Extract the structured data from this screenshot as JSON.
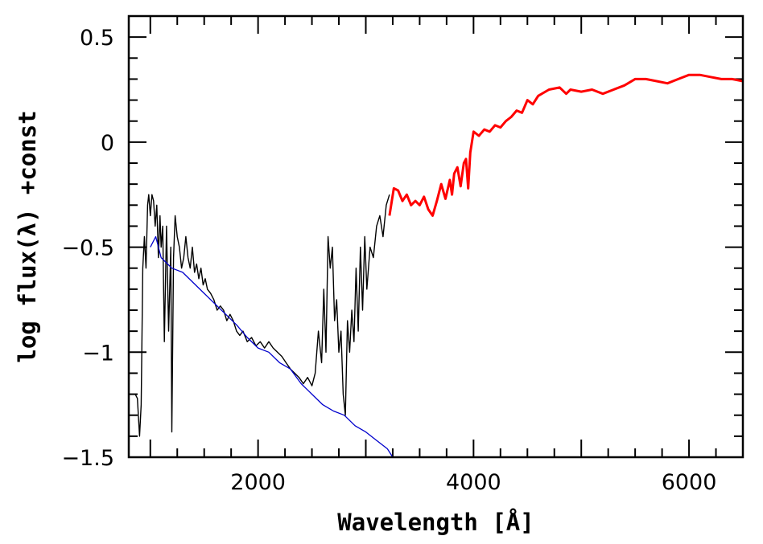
{
  "chart_data": {
    "type": "line",
    "title": "",
    "xlabel": "Wavelength [Å]",
    "ylabel": "log flux(λ) +const",
    "xlim": [
      800,
      6500
    ],
    "ylim": [
      -1.5,
      0.6
    ],
    "x_ticks": [
      2000,
      4000,
      6000
    ],
    "x_tick_labels": [
      "2000",
      "4000",
      "6000"
    ],
    "y_ticks": [
      0.5,
      0,
      -0.5,
      -1,
      -1.5
    ],
    "y_tick_labels": [
      "0.5",
      "0",
      "−0.5",
      "−1",
      "−1.5"
    ],
    "grid": false,
    "legend": "none",
    "series": [
      {
        "color": "#000000",
        "x": [
          860,
          880,
          900,
          915,
          930,
          945,
          960,
          975,
          985,
          1000,
          1015,
          1030,
          1045,
          1060,
          1075,
          1090,
          1100,
          1115,
          1130,
          1150,
          1170,
          1190,
          1200,
          1215,
          1230,
          1250,
          1270,
          1290,
          1310,
          1330,
          1350,
          1370,
          1390,
          1410,
          1430,
          1450,
          1470,
          1490,
          1510,
          1530,
          1560,
          1590,
          1620,
          1650,
          1680,
          1710,
          1740,
          1770,
          1800,
          1830,
          1860,
          1900,
          1940,
          1980,
          2020,
          2060,
          2100,
          2140,
          2180,
          2220,
          2260,
          2300,
          2340,
          2380,
          2420,
          2460,
          2500,
          2530,
          2560,
          2590,
          2610,
          2630,
          2650,
          2670,
          2690,
          2710,
          2730,
          2750,
          2770,
          2790,
          2810,
          2830,
          2850,
          2870,
          2890,
          2910,
          2930,
          2950,
          2970,
          2990,
          3010,
          3040,
          3070,
          3100,
          3130,
          3160,
          3190,
          3220
        ],
        "y": [
          -1.2,
          -1.22,
          -1.4,
          -1.25,
          -0.6,
          -0.45,
          -0.6,
          -0.3,
          -0.25,
          -0.35,
          -0.25,
          -0.28,
          -0.4,
          -0.3,
          -0.55,
          -0.35,
          -0.5,
          -0.4,
          -0.95,
          -0.4,
          -0.9,
          -0.5,
          -1.38,
          -0.55,
          -0.35,
          -0.45,
          -0.5,
          -0.6,
          -0.55,
          -0.45,
          -0.55,
          -0.6,
          -0.5,
          -0.62,
          -0.58,
          -0.65,
          -0.6,
          -0.68,
          -0.65,
          -0.7,
          -0.72,
          -0.75,
          -0.8,
          -0.78,
          -0.8,
          -0.85,
          -0.82,
          -0.85,
          -0.9,
          -0.92,
          -0.9,
          -0.95,
          -0.93,
          -0.97,
          -0.95,
          -0.98,
          -0.95,
          -0.98,
          -1.0,
          -1.02,
          -1.05,
          -1.08,
          -1.1,
          -1.12,
          -1.15,
          -1.12,
          -1.16,
          -1.1,
          -0.9,
          -1.05,
          -0.7,
          -1.0,
          -0.45,
          -0.6,
          -0.5,
          -0.85,
          -0.75,
          -1.0,
          -0.9,
          -1.2,
          -1.3,
          -0.85,
          -1.0,
          -0.8,
          -0.95,
          -0.6,
          -0.9,
          -0.5,
          -0.8,
          -0.45,
          -0.7,
          -0.5,
          -0.55,
          -0.4,
          -0.35,
          -0.45,
          -0.3,
          -0.25
        ]
      },
      {
        "color": "#0000cc",
        "x": [
          1000,
          1050,
          1100,
          1200,
          1300,
          1400,
          1500,
          1600,
          1700,
          1800,
          1900,
          2000,
          2100,
          2200,
          2300,
          2400,
          2500,
          2600,
          2700,
          2800,
          2900,
          3000,
          3100,
          3200,
          3250
        ],
        "y": [
          -0.5,
          -0.45,
          -0.55,
          -0.6,
          -0.62,
          -0.67,
          -0.72,
          -0.77,
          -0.82,
          -0.87,
          -0.93,
          -0.98,
          -1.0,
          -1.05,
          -1.08,
          -1.15,
          -1.2,
          -1.25,
          -1.28,
          -1.3,
          -1.35,
          -1.38,
          -1.42,
          -1.46,
          -1.5
        ]
      },
      {
        "color": "#ff0000",
        "x": [
          3220,
          3260,
          3300,
          3340,
          3380,
          3420,
          3460,
          3500,
          3540,
          3580,
          3620,
          3660,
          3700,
          3740,
          3780,
          3800,
          3820,
          3850,
          3880,
          3910,
          3930,
          3950,
          3970,
          4000,
          4050,
          4100,
          4150,
          4200,
          4250,
          4300,
          4350,
          4400,
          4450,
          4500,
          4550,
          4600,
          4700,
          4800,
          4860,
          4900,
          5000,
          5100,
          5200,
          5300,
          5400,
          5500,
          5600,
          5700,
          5800,
          5900,
          6000,
          6100,
          6200,
          6300,
          6400,
          6500
        ],
        "y": [
          -0.35,
          -0.22,
          -0.23,
          -0.28,
          -0.25,
          -0.3,
          -0.28,
          -0.3,
          -0.26,
          -0.32,
          -0.35,
          -0.28,
          -0.2,
          -0.27,
          -0.18,
          -0.25,
          -0.15,
          -0.12,
          -0.21,
          -0.1,
          -0.08,
          -0.22,
          -0.05,
          0.05,
          0.03,
          0.06,
          0.05,
          0.08,
          0.07,
          0.1,
          0.12,
          0.15,
          0.14,
          0.2,
          0.18,
          0.22,
          0.25,
          0.26,
          0.23,
          0.25,
          0.24,
          0.25,
          0.23,
          0.25,
          0.27,
          0.3,
          0.3,
          0.29,
          0.28,
          0.3,
          0.32,
          0.32,
          0.31,
          0.3,
          0.3,
          0.29
        ]
      }
    ]
  }
}
